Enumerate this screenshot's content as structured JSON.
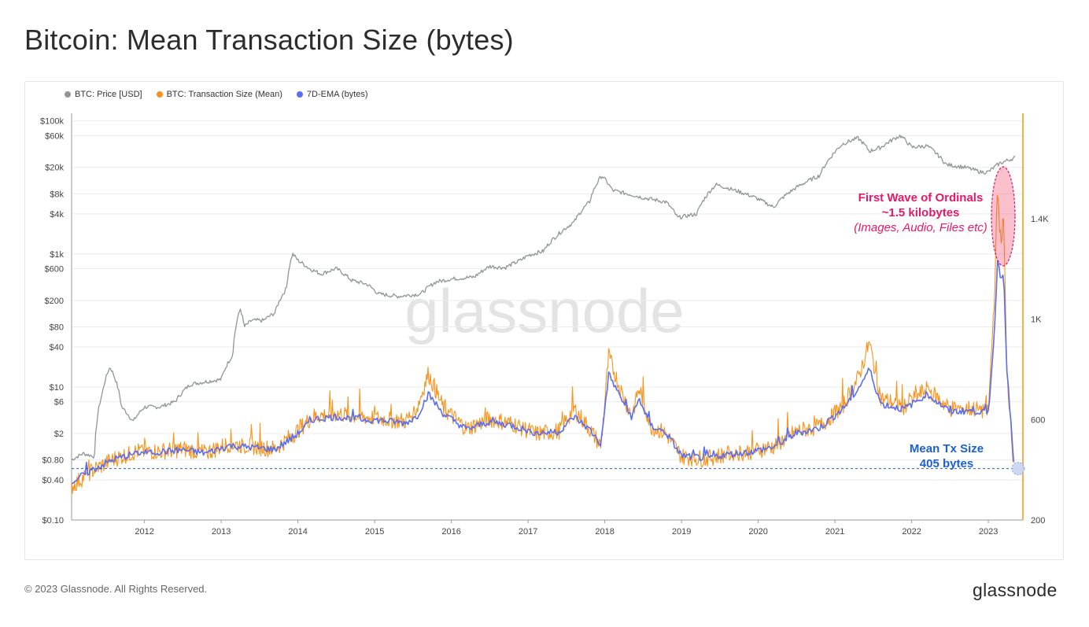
{
  "page": {
    "title": "Bitcoin: Mean Transaction Size (bytes)",
    "footer_copyright": "© 2023 Glassnode. All Rights Reserved.",
    "footer_logo": "glassnode",
    "watermark": "glassnode"
  },
  "colors": {
    "price": "#8f9793",
    "tx_size": "#f7931a",
    "ema": "#5a6ef0",
    "annotation_ordinals": "#e5186a",
    "annotation_mean": "#1a5fd6",
    "axis_right": "#f7931a"
  },
  "annotations": {
    "ordinals_line1": "First Wave of Ordinals",
    "ordinals_line2": "~1.5 kilobytes",
    "ordinals_line3": "(Images, Audio, Files etc)",
    "mean_line1": "Mean Tx Size",
    "mean_line2": "405 bytes"
  },
  "chart_data": {
    "type": "line",
    "title": "Bitcoin: Mean Transaction Size (bytes)",
    "legend": [
      "BTC: Price [USD]",
      "BTC: Transaction Size (Mean)",
      "7D-EMA (bytes)"
    ],
    "legend_position": "top-left",
    "grid": true,
    "x_ticks": [
      "2012",
      "2013",
      "2014",
      "2015",
      "2016",
      "2017",
      "2018",
      "2019",
      "2020",
      "2021",
      "2022",
      "2023"
    ],
    "xlim": [
      2011.05,
      2023.45
    ],
    "left_axis": {
      "scale": "log",
      "ticks": [
        {
          "v": 100000,
          "label": "$100k"
        },
        {
          "v": 60000,
          "label": "$60k"
        },
        {
          "v": 20000,
          "label": "$20k"
        },
        {
          "v": 8000,
          "label": "$8k"
        },
        {
          "v": 4000,
          "label": "$4k"
        },
        {
          "v": 1000,
          "label": "$1k"
        },
        {
          "v": 600,
          "label": "$600"
        },
        {
          "v": 200,
          "label": "$200"
        },
        {
          "v": 80,
          "label": "$80"
        },
        {
          "v": 40,
          "label": "$40"
        },
        {
          "v": 10,
          "label": "$10"
        },
        {
          "v": 6,
          "label": "$6"
        },
        {
          "v": 2,
          "label": "$2"
        },
        {
          "v": 0.8,
          "label": "$0.80"
        },
        {
          "v": 0.4,
          "label": "$0.40"
        },
        {
          "v": 0.1,
          "label": "$0.10"
        }
      ],
      "ylim": [
        0.1,
        130000
      ]
    },
    "right_axis": {
      "scale": "linear",
      "ticks": [
        {
          "v": 200,
          "label": "200"
        },
        {
          "v": 600,
          "label": "600"
        },
        {
          "v": 1000,
          "label": "1K"
        },
        {
          "v": 1400,
          "label": "1.4K"
        }
      ],
      "ylim": [
        200,
        1820
      ]
    },
    "reference_line_bytes": 405,
    "series": [
      {
        "name": "BTC: Price [USD]",
        "axis": "left",
        "x": [
          2011.05,
          2011.2,
          2011.35,
          2011.45,
          2011.55,
          2011.7,
          2011.85,
          2012.0,
          2012.2,
          2012.4,
          2012.6,
          2012.8,
          2013.0,
          2013.15,
          2013.25,
          2013.3,
          2013.4,
          2013.55,
          2013.7,
          2013.85,
          2013.93,
          2014.0,
          2014.15,
          2014.3,
          2014.5,
          2014.7,
          2014.9,
          2015.05,
          2015.3,
          2015.6,
          2015.8,
          2016.0,
          2016.3,
          2016.5,
          2016.7,
          2016.9,
          2017.0,
          2017.2,
          2017.4,
          2017.6,
          2017.8,
          2017.96,
          2018.1,
          2018.3,
          2018.5,
          2018.8,
          2018.95,
          2019.2,
          2019.45,
          2019.7,
          2019.9,
          2020.2,
          2020.5,
          2020.8,
          2020.95,
          2021.1,
          2021.3,
          2021.45,
          2021.6,
          2021.85,
          2022.0,
          2022.2,
          2022.45,
          2022.7,
          2022.9,
          2023.0,
          2023.15,
          2023.35
        ],
        "values": [
          0.8,
          1,
          0.9,
          8,
          20,
          5,
          3,
          5,
          5,
          6,
          11,
          12,
          13,
          30,
          150,
          80,
          100,
          100,
          130,
          300,
          1000,
          800,
          600,
          500,
          600,
          400,
          350,
          250,
          230,
          250,
          380,
          420,
          450,
          650,
          620,
          800,
          950,
          1100,
          2000,
          3000,
          6000,
          15000,
          9000,
          8000,
          7000,
          6000,
          3500,
          4000,
          11000,
          9000,
          7500,
          5000,
          10000,
          15000,
          29000,
          45000,
          55000,
          35000,
          40000,
          60000,
          40000,
          42000,
          22000,
          20000,
          17000,
          17000,
          23000,
          28000
        ]
      },
      {
        "name": "BTC: Transaction Size (Mean)",
        "axis": "right",
        "x": [
          2011.05,
          2011.3,
          2011.6,
          2011.9,
          2012.2,
          2012.5,
          2012.8,
          2013.1,
          2013.4,
          2013.7,
          2013.95,
          2014.2,
          2014.5,
          2014.8,
          2015.1,
          2015.4,
          2015.55,
          2015.7,
          2015.9,
          2016.2,
          2016.5,
          2016.8,
          2017.1,
          2017.4,
          2017.6,
          2017.8,
          2017.95,
          2018.05,
          2018.2,
          2018.35,
          2018.45,
          2018.6,
          2018.8,
          2019.0,
          2019.3,
          2019.6,
          2019.9,
          2020.2,
          2020.5,
          2020.8,
          2021.1,
          2021.3,
          2021.45,
          2021.6,
          2021.9,
          2022.2,
          2022.5,
          2022.8,
          2023.0,
          2023.08,
          2023.12,
          2023.16,
          2023.2,
          2023.24,
          2023.3,
          2023.33
        ],
        "values": [
          330,
          390,
          440,
          470,
          470,
          480,
          465,
          500,
          490,
          480,
          540,
          610,
          620,
          610,
          600,
          590,
          640,
          780,
          640,
          560,
          600,
          580,
          540,
          550,
          640,
          560,
          490,
          850,
          720,
          610,
          720,
          570,
          540,
          450,
          440,
          460,
          470,
          490,
          550,
          570,
          650,
          760,
          900,
          680,
          650,
          720,
          640,
          640,
          630,
          1100,
          1520,
          1300,
          1400,
          780,
          560,
          405
        ]
      },
      {
        "name": "7D-EMA (bytes)",
        "axis": "right",
        "x": [
          2011.05,
          2011.3,
          2011.6,
          2011.9,
          2012.2,
          2012.5,
          2012.8,
          2013.1,
          2013.4,
          2013.7,
          2013.95,
          2014.2,
          2014.5,
          2014.8,
          2015.1,
          2015.4,
          2015.55,
          2015.7,
          2015.9,
          2016.2,
          2016.5,
          2016.8,
          2017.1,
          2017.4,
          2017.6,
          2017.8,
          2017.95,
          2018.05,
          2018.2,
          2018.35,
          2018.45,
          2018.6,
          2018.8,
          2019.0,
          2019.3,
          2019.6,
          2019.9,
          2020.2,
          2020.5,
          2020.8,
          2021.1,
          2021.3,
          2021.45,
          2021.6,
          2021.9,
          2022.2,
          2022.5,
          2022.8,
          2023.0,
          2023.08,
          2023.12,
          2023.16,
          2023.2,
          2023.24,
          2023.3,
          2023.33
        ],
        "values": [
          350,
          395,
          440,
          465,
          470,
          478,
          465,
          495,
          488,
          480,
          530,
          600,
          610,
          600,
          595,
          585,
          610,
          700,
          620,
          560,
          590,
          575,
          545,
          550,
          610,
          560,
          500,
          780,
          690,
          610,
          680,
          575,
          545,
          455,
          445,
          460,
          470,
          490,
          545,
          565,
          640,
          720,
          800,
          660,
          640,
          700,
          630,
          635,
          625,
          950,
          1250,
          1150,
          1200,
          800,
          560,
          420
        ]
      }
    ]
  }
}
